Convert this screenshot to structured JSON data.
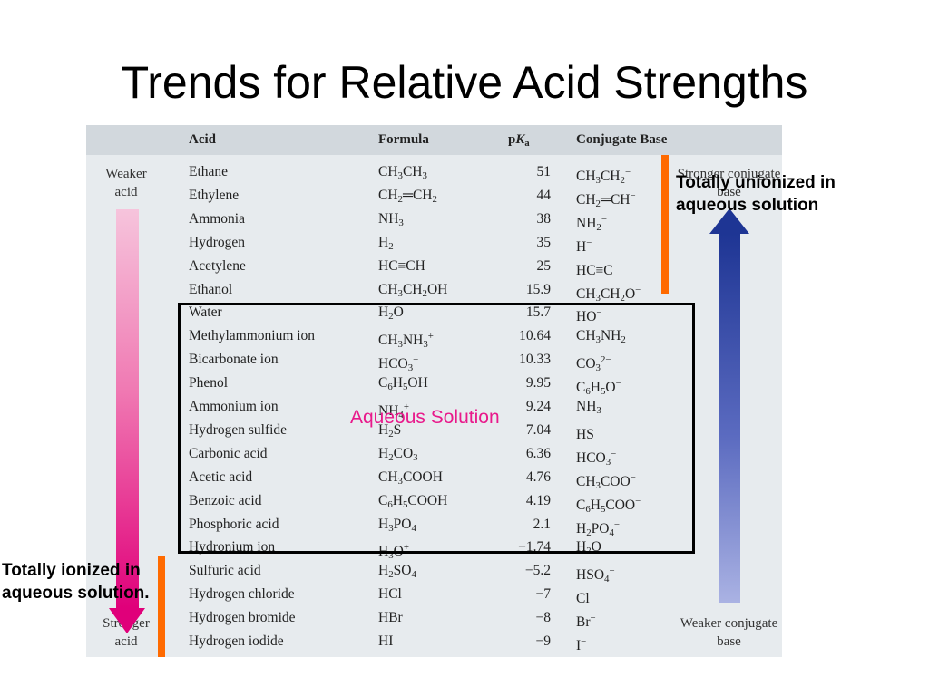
{
  "slide": {
    "title": "Trends for Relative Acid Strengths"
  },
  "table": {
    "headers": {
      "acid": "Acid",
      "formula": "Formula",
      "pka": "pKa",
      "base": "Conjugate Base"
    },
    "rows": [
      {
        "acid": "Ethane",
        "formula": "CH3CH3",
        "pka": "51",
        "base": "CH3CH2−"
      },
      {
        "acid": "Ethylene",
        "formula": "CH2═CH2",
        "pka": "44",
        "base": "CH2═CH−"
      },
      {
        "acid": "Ammonia",
        "formula": "NH3",
        "pka": "38",
        "base": "NH2−"
      },
      {
        "acid": "Hydrogen",
        "formula": "H2",
        "pka": "35",
        "base": "H−"
      },
      {
        "acid": "Acetylene",
        "formula": "HC≡CH",
        "pka": "25",
        "base": "HC≡C−"
      },
      {
        "acid": "Ethanol",
        "formula": "CH3CH2OH",
        "pka": "15.9",
        "base": "CH3CH2O−"
      },
      {
        "acid": "Water",
        "formula": "H2O",
        "pka": "15.7",
        "base": "HO−"
      },
      {
        "acid": "Methylammonium ion",
        "formula": "CH3NH3+",
        "pka": "10.64",
        "base": "CH3NH2"
      },
      {
        "acid": "Bicarbonate ion",
        "formula": "HCO3−",
        "pka": "10.33",
        "base": "CO3 2−"
      },
      {
        "acid": "Phenol",
        "formula": "C6H5OH",
        "pka": "9.95",
        "base": "C6H5O−"
      },
      {
        "acid": "Ammonium ion",
        "formula": "NH4+",
        "pka": "9.24",
        "base": "NH3"
      },
      {
        "acid": "Hydrogen sulfide",
        "formula": "H2S",
        "pka": "7.04",
        "base": "HS−"
      },
      {
        "acid": "Carbonic acid",
        "formula": "H2CO3",
        "pka": "6.36",
        "base": "HCO3−"
      },
      {
        "acid": "Acetic acid",
        "formula": "CH3COOH",
        "pka": "4.76",
        "base": "CH3COO−"
      },
      {
        "acid": "Benzoic acid",
        "formula": "C6H5COOH",
        "pka": "4.19",
        "base": "C6H5COO−"
      },
      {
        "acid": "Phosphoric acid",
        "formula": "H3PO4",
        "pka": "2.1",
        "base": "H2PO4−"
      },
      {
        "acid": "Hydronium ion",
        "formula": "H3O+",
        "pka": "−1.74",
        "base": "H2O"
      },
      {
        "acid": "Sulfuric acid",
        "formula": "H2SO4",
        "pka": "−5.2",
        "base": "HSO4−"
      },
      {
        "acid": "Hydrogen chloride",
        "formula": "HCl",
        "pka": "−7",
        "base": "Cl−"
      },
      {
        "acid": "Hydrogen bromide",
        "formula": "HBr",
        "pka": "−8",
        "base": "Br−"
      },
      {
        "acid": "Hydrogen iodide",
        "formula": "HI",
        "pka": "−9",
        "base": "I−"
      }
    ]
  },
  "side_labels": {
    "weaker_acid": "Weaker acid",
    "stronger_acid": "Stronger acid",
    "stronger_base": "Stronger conjugate base",
    "weaker_base": "Weaker conjugate base"
  },
  "annotations": {
    "unionized": "Totally unionized in aqueous solution",
    "ionized": "Totally ionized in aqueous solution.",
    "aqueous": "Aqueous Solution"
  },
  "colors": {
    "orange_bar": "#ff6a00",
    "pink_arrow": "#e0007a",
    "blue_arrow": "#1e3594",
    "aqueous_label": "#e8198b"
  }
}
